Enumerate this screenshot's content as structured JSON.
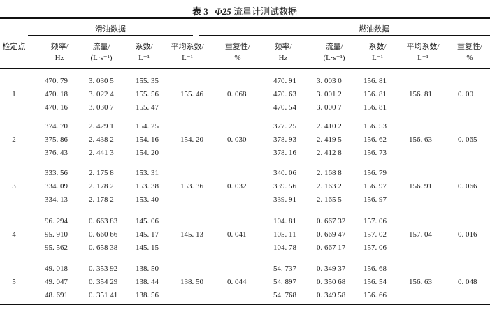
{
  "title": {
    "label": "表 3",
    "symbol": "Φ25",
    "text": "流量计测试数据"
  },
  "header": {
    "point": "检定点",
    "groups": [
      "滑油数据",
      "燃油数据"
    ],
    "columns": [
      {
        "line1": "频率/",
        "line2": "Hz"
      },
      {
        "line1": "流量/",
        "line2": "(L·s⁻¹)"
      },
      {
        "line1": "系数/",
        "line2": "L⁻¹"
      },
      {
        "line1": "平均系数/",
        "line2": "L⁻¹"
      },
      {
        "line1": "重复性/",
        "line2": "%"
      }
    ]
  },
  "rows": [
    {
      "point": "1",
      "lube": {
        "freq": [
          "470. 79",
          "470. 18",
          "470. 16"
        ],
        "flow": [
          "3. 030 5",
          "3. 022 4",
          "3. 030 7"
        ],
        "coef": [
          "155. 35",
          "155. 56",
          "155. 47"
        ],
        "avg": "155. 46",
        "rep": "0. 068"
      },
      "fuel": {
        "freq": [
          "470. 91",
          "470. 63",
          "470. 54"
        ],
        "flow": [
          "3. 003 0",
          "3. 001 2",
          "3. 000 7"
        ],
        "coef": [
          "156. 81",
          "156. 81",
          "156. 81"
        ],
        "avg": "156. 81",
        "rep": "0. 00"
      }
    },
    {
      "point": "2",
      "lube": {
        "freq": [
          "374. 70",
          "375. 86",
          "376. 43"
        ],
        "flow": [
          "2. 429 1",
          "2. 438 2",
          "2. 441 3"
        ],
        "coef": [
          "154. 25",
          "154. 16",
          "154. 20"
        ],
        "avg": "154. 20",
        "rep": "0. 030"
      },
      "fuel": {
        "freq": [
          "377. 25",
          "378. 93",
          "378. 16"
        ],
        "flow": [
          "2. 410 2",
          "2. 419 5",
          "2. 412 8"
        ],
        "coef": [
          "156. 53",
          "156. 62",
          "156. 73"
        ],
        "avg": "156. 63",
        "rep": "0. 065"
      }
    },
    {
      "point": "3",
      "lube": {
        "freq": [
          "333. 56",
          "334. 09",
          "334. 13"
        ],
        "flow": [
          "2. 175 8",
          "2. 178 2",
          "2. 178 2"
        ],
        "coef": [
          "153. 31",
          "153. 38",
          "153. 40"
        ],
        "avg": "153. 36",
        "rep": "0. 032"
      },
      "fuel": {
        "freq": [
          "340. 06",
          "339. 56",
          "339. 91"
        ],
        "flow": [
          "2. 168 8",
          "2. 163 2",
          "2. 165 5"
        ],
        "coef": [
          "156. 79",
          "156. 97",
          "156. 97"
        ],
        "avg": "156. 91",
        "rep": "0. 066"
      }
    },
    {
      "point": "4",
      "lube": {
        "freq": [
          "96. 294",
          "95. 910",
          "95. 562"
        ],
        "flow": [
          "0. 663 83",
          "0. 660 66",
          "0. 658 38"
        ],
        "coef": [
          "145. 06",
          "145. 17",
          "145. 15"
        ],
        "avg": "145. 13",
        "rep": "0. 041"
      },
      "fuel": {
        "freq": [
          "104. 81",
          "105. 11",
          "104. 78"
        ],
        "flow": [
          "0. 667 32",
          "0. 669 47",
          "0. 667 17"
        ],
        "coef": [
          "157. 06",
          "157. 02",
          "157. 06"
        ],
        "avg": "157. 04",
        "rep": "0. 016"
      }
    },
    {
      "point": "5",
      "lube": {
        "freq": [
          "49. 018",
          "49. 047",
          "48. 691"
        ],
        "flow": [
          "0. 353 92",
          "0. 354 29",
          "0. 351 41"
        ],
        "coef": [
          "138. 50",
          "138. 44",
          "138. 56"
        ],
        "avg": "138. 50",
        "rep": "0. 044"
      },
      "fuel": {
        "freq": [
          "54. 737",
          "54. 897",
          "54. 768"
        ],
        "flow": [
          "0. 349 37",
          "0. 350 68",
          "0. 349 58"
        ],
        "coef": [
          "156. 68",
          "156. 54",
          "156. 66"
        ],
        "avg": "156. 63",
        "rep": "0. 048"
      }
    }
  ]
}
